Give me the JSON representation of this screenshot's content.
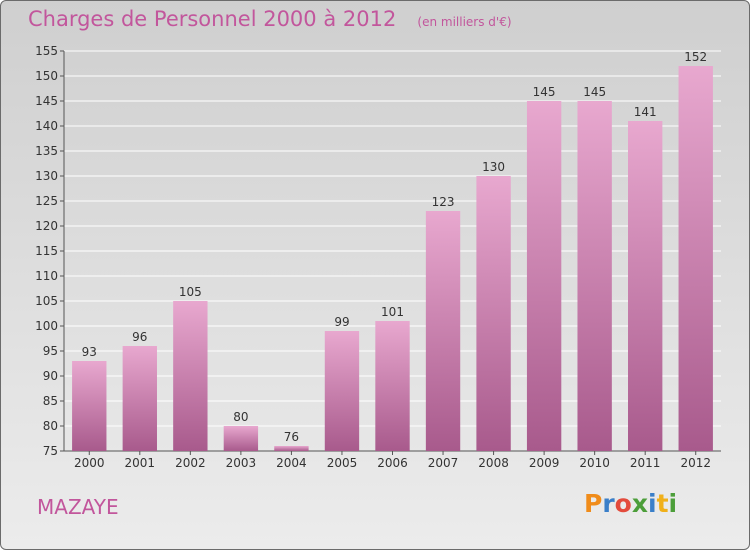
{
  "title": "Charges de Personnel 2000 à 2012",
  "subtitle": "(en milliers d'€)",
  "commune": "MAZAYE",
  "logo": {
    "letters": [
      "P",
      "r",
      "o",
      "x",
      "i",
      "t",
      "i"
    ],
    "colors": [
      "#f08c1a",
      "#3a7fc9",
      "#e34b3c",
      "#4c9e3a",
      "#3a7fc9",
      "#f0b01a",
      "#4c9e3a"
    ]
  },
  "colors": {
    "bar_top": "#e8a8cf",
    "bar_bottom": "#a85a8c",
    "text": "#c2569c"
  },
  "chart_data": {
    "type": "bar",
    "categories": [
      "2000",
      "2001",
      "2002",
      "2003",
      "2004",
      "2005",
      "2006",
      "2007",
      "2008",
      "2009",
      "2010",
      "2011",
      "2012"
    ],
    "values": [
      93,
      96,
      105,
      80,
      76,
      99,
      101,
      123,
      130,
      145,
      145,
      141,
      152
    ],
    "ylim": [
      75,
      155
    ],
    "yticks": [
      75,
      80,
      85,
      90,
      95,
      100,
      105,
      110,
      115,
      120,
      125,
      130,
      135,
      140,
      145,
      150,
      155
    ],
    "grid": true
  }
}
